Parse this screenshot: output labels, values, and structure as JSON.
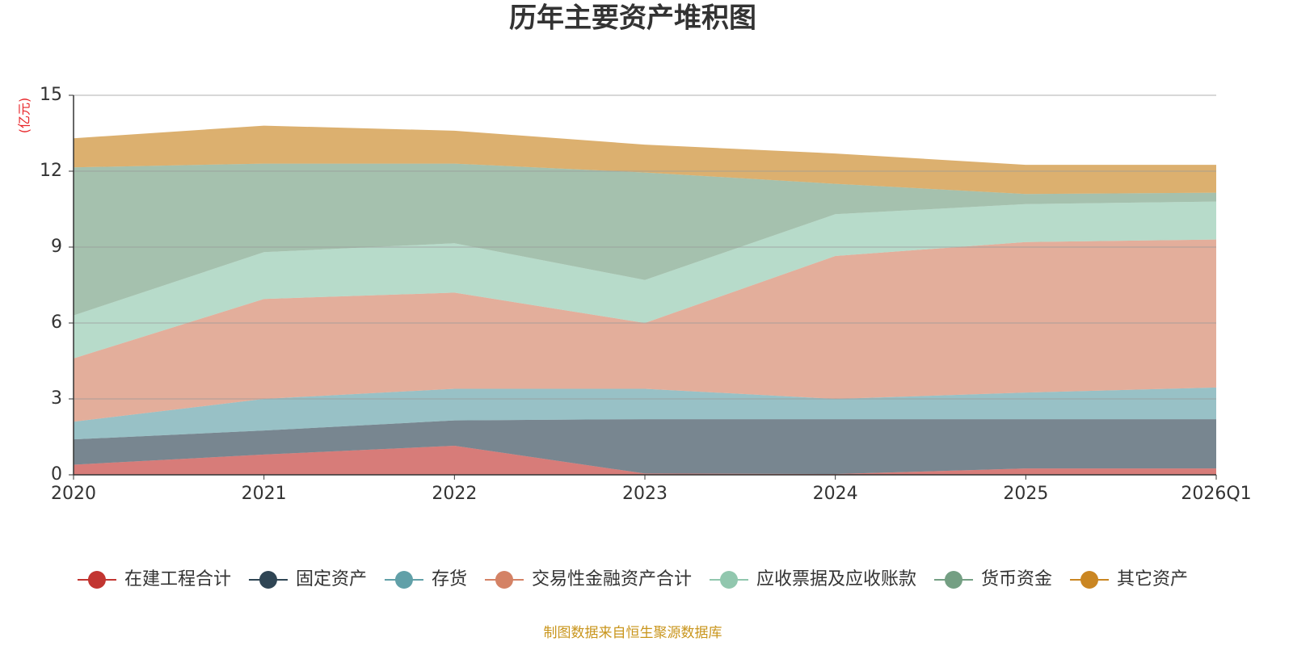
{
  "chart_data": {
    "type": "stacked_area",
    "title": "历年主要资产堆积图",
    "y_label": "(亿元)",
    "categories": [
      "2020",
      "2021",
      "2022",
      "2023",
      "2024",
      "2025",
      "2026Q1"
    ],
    "series": [
      {
        "name": "在建工程合计",
        "color": "#c23531",
        "values": [
          0.4,
          0.8,
          1.15,
          0.05,
          0.03,
          0.25,
          0.25
        ]
      },
      {
        "name": "固定资产",
        "color": "#2f4554",
        "values": [
          1.0,
          0.95,
          1.0,
          2.15,
          2.17,
          1.95,
          1.95
        ]
      },
      {
        "name": "存货",
        "color": "#61a0a8",
        "values": [
          0.7,
          1.25,
          1.25,
          1.2,
          0.8,
          1.05,
          1.25
        ]
      },
      {
        "name": "交易性金融资产合计",
        "color": "#d48265",
        "values": [
          2.5,
          3.95,
          3.8,
          2.6,
          5.65,
          5.95,
          5.85
        ]
      },
      {
        "name": "应收票据及应收账款",
        "color": "#91c7ae",
        "values": [
          1.7,
          1.85,
          1.95,
          1.7,
          1.65,
          1.5,
          1.5
        ]
      },
      {
        "name": "货币资金",
        "color": "#749f83",
        "values": [
          5.85,
          3.5,
          3.15,
          4.25,
          1.2,
          0.4,
          0.35
        ]
      },
      {
        "name": "其它资产",
        "color": "#ca8622",
        "values": [
          1.15,
          1.5,
          1.3,
          1.1,
          1.2,
          1.15,
          1.1
        ]
      }
    ],
    "ylim": [
      0,
      15
    ],
    "yticks": [
      0,
      3,
      6,
      9,
      12,
      15
    ],
    "grid": true,
    "footer": "制图数据来自恒生聚源数据库"
  }
}
